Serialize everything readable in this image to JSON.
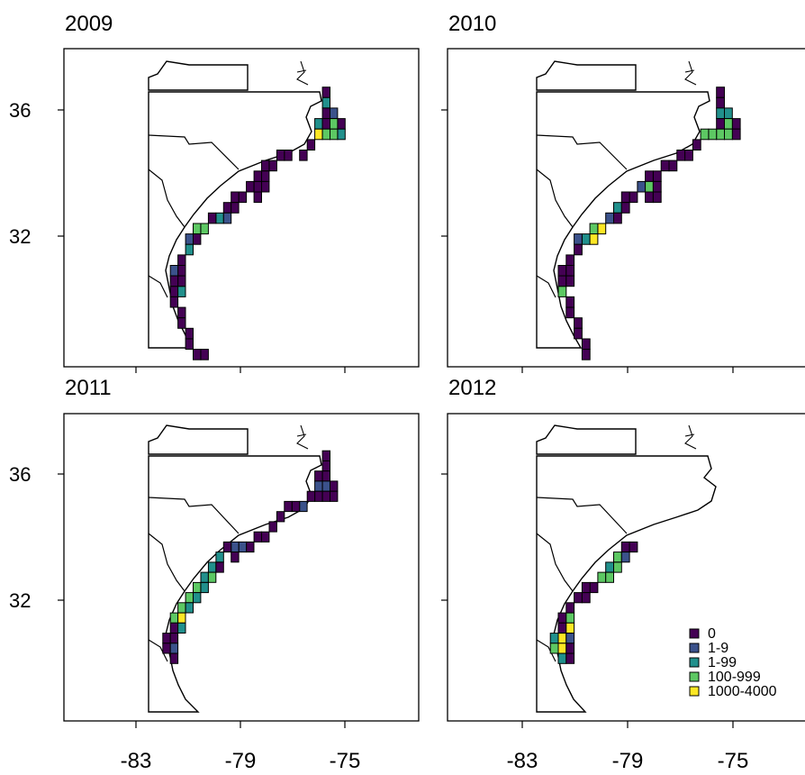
{
  "figure": {
    "panel_titles": [
      "2009",
      "2010",
      "2011",
      "2012"
    ],
    "y_tick_labels": [
      "36",
      "32"
    ],
    "x_tick_labels": [
      "-83",
      "-79",
      "-75"
    ],
    "legend": [
      {
        "label": "0",
        "color": "#440154"
      },
      {
        "label": "1-9",
        "color": "#3b528b"
      },
      {
        "label": "1-99",
        "color": "#21908c"
      },
      {
        "label": "100-999",
        "color": "#5dc863"
      },
      {
        "label": "1000-4000",
        "color": "#fde725"
      }
    ]
  },
  "chart_data": [
    {
      "type": "heatmap",
      "title": "2009",
      "lon_range": [
        -85.5,
        -71.5
      ],
      "lat_range": [
        28.7,
        37.8
      ],
      "grid_cell_deg": 0.3,
      "cells": [
        [
          -75.3,
          36.4,
          0
        ],
        [
          -75.3,
          36.1,
          2
        ],
        [
          -75.3,
          35.8,
          0
        ],
        [
          -75.0,
          35.8,
          1
        ],
        [
          -74.7,
          35.5,
          0
        ],
        [
          -75.0,
          35.5,
          3
        ],
        [
          -75.3,
          35.5,
          0
        ],
        [
          -75.6,
          35.5,
          2
        ],
        [
          -74.7,
          35.2,
          2
        ],
        [
          -75.0,
          35.2,
          3
        ],
        [
          -75.3,
          35.2,
          3
        ],
        [
          -75.6,
          35.2,
          4
        ],
        [
          -75.9,
          34.9,
          0
        ],
        [
          -76.2,
          34.6,
          0
        ],
        [
          -76.8,
          34.6,
          0
        ],
        [
          -77.1,
          34.6,
          0
        ],
        [
          -77.4,
          34.3,
          0
        ],
        [
          -77.7,
          34.3,
          0
        ],
        [
          -78.0,
          34.0,
          0
        ],
        [
          -77.7,
          34.0,
          0
        ],
        [
          -78.3,
          33.7,
          0
        ],
        [
          -78.0,
          33.7,
          0
        ],
        [
          -77.7,
          33.7,
          0
        ],
        [
          -78.6,
          33.4,
          0
        ],
        [
          -78.9,
          33.4,
          0
        ],
        [
          -78.0,
          33.4,
          0
        ],
        [
          -79.2,
          33.1,
          0
        ],
        [
          -78.9,
          33.1,
          0
        ],
        [
          -79.5,
          32.8,
          2
        ],
        [
          -79.2,
          32.8,
          1
        ],
        [
          -79.8,
          32.8,
          0
        ],
        [
          -80.1,
          32.5,
          3
        ],
        [
          -80.4,
          32.5,
          3
        ],
        [
          -80.7,
          32.2,
          1
        ],
        [
          -80.4,
          32.2,
          0
        ],
        [
          -80.7,
          31.9,
          2
        ],
        [
          -81.0,
          31.6,
          0
        ],
        [
          -81.0,
          31.3,
          0
        ],
        [
          -81.3,
          31.3,
          1
        ],
        [
          -81.0,
          31.0,
          0
        ],
        [
          -81.3,
          31.0,
          0
        ],
        [
          -81.3,
          30.7,
          0
        ],
        [
          -81.0,
          30.7,
          2
        ],
        [
          -81.3,
          30.4,
          0
        ],
        [
          -81.0,
          30.1,
          0
        ],
        [
          -81.0,
          29.8,
          0
        ],
        [
          -80.7,
          29.5,
          0
        ],
        [
          -80.7,
          29.2,
          0
        ],
        [
          -80.4,
          28.9,
          0
        ],
        [
          -80.1,
          28.9,
          0
        ]
      ]
    },
    {
      "type": "heatmap",
      "title": "2010",
      "lon_range": [
        -85.5,
        -71.5
      ],
      "lat_range": [
        28.7,
        37.8
      ],
      "grid_cell_deg": 0.3,
      "cells": [
        [
          -75.3,
          36.4,
          0
        ],
        [
          -75.3,
          36.1,
          0
        ],
        [
          -75.3,
          35.8,
          2
        ],
        [
          -75.0,
          35.8,
          2
        ],
        [
          -74.7,
          35.5,
          0
        ],
        [
          -75.0,
          35.5,
          3
        ],
        [
          -75.3,
          35.5,
          0
        ],
        [
          -74.7,
          35.2,
          0
        ],
        [
          -75.0,
          35.2,
          3
        ],
        [
          -75.3,
          35.2,
          3
        ],
        [
          -75.6,
          35.2,
          3
        ],
        [
          -75.9,
          35.2,
          3
        ],
        [
          -76.2,
          34.9,
          0
        ],
        [
          -76.5,
          34.6,
          0
        ],
        [
          -76.8,
          34.6,
          0
        ],
        [
          -77.1,
          34.3,
          0
        ],
        [
          -77.4,
          34.3,
          0
        ],
        [
          -77.7,
          34.0,
          0
        ],
        [
          -78.0,
          34.0,
          0
        ],
        [
          -78.3,
          33.7,
          1
        ],
        [
          -78.0,
          33.7,
          3
        ],
        [
          -77.7,
          33.7,
          0
        ],
        [
          -78.6,
          33.4,
          0
        ],
        [
          -78.0,
          33.4,
          0
        ],
        [
          -77.7,
          33.4,
          0
        ],
        [
          -78.9,
          33.4,
          0
        ],
        [
          -79.2,
          33.1,
          2
        ],
        [
          -78.9,
          33.1,
          0
        ],
        [
          -79.5,
          32.8,
          1
        ],
        [
          -79.2,
          32.8,
          0
        ],
        [
          -79.8,
          32.5,
          4
        ],
        [
          -80.1,
          32.5,
          3
        ],
        [
          -80.4,
          32.2,
          2
        ],
        [
          -80.1,
          32.2,
          4
        ],
        [
          -80.7,
          32.2,
          1
        ],
        [
          -80.7,
          31.9,
          0
        ],
        [
          -81.0,
          31.6,
          0
        ],
        [
          -81.3,
          31.3,
          0
        ],
        [
          -81.0,
          31.3,
          0
        ],
        [
          -81.3,
          31.0,
          0
        ],
        [
          -81.0,
          31.0,
          0
        ],
        [
          -81.3,
          30.7,
          3
        ],
        [
          -81.0,
          30.4,
          0
        ],
        [
          -81.0,
          30.1,
          0
        ],
        [
          -80.7,
          29.8,
          0
        ],
        [
          -80.7,
          29.5,
          0
        ],
        [
          -80.4,
          29.2,
          0
        ],
        [
          -80.4,
          28.9,
          0
        ]
      ]
    },
    {
      "type": "heatmap",
      "title": "2011",
      "lon_range": [
        -85.5,
        -71.5
      ],
      "lat_range": [
        28.7,
        37.8
      ],
      "grid_cell_deg": 0.3,
      "cells": [
        [
          -75.3,
          36.4,
          0
        ],
        [
          -75.3,
          36.1,
          0
        ],
        [
          -75.3,
          35.8,
          0
        ],
        [
          -75.6,
          35.8,
          0
        ],
        [
          -75.0,
          35.5,
          0
        ],
        [
          -75.3,
          35.5,
          1
        ],
        [
          -75.6,
          35.5,
          1
        ],
        [
          -75.0,
          35.2,
          0
        ],
        [
          -75.3,
          35.2,
          0
        ],
        [
          -75.6,
          35.2,
          0
        ],
        [
          -75.9,
          35.2,
          0
        ],
        [
          -76.2,
          34.9,
          1
        ],
        [
          -76.5,
          34.9,
          0
        ],
        [
          -76.8,
          34.9,
          0
        ],
        [
          -77.1,
          34.6,
          0
        ],
        [
          -77.4,
          34.3,
          0
        ],
        [
          -77.7,
          34.0,
          0
        ],
        [
          -78.0,
          34.0,
          0
        ],
        [
          -78.3,
          33.7,
          0
        ],
        [
          -78.6,
          33.7,
          1
        ],
        [
          -78.9,
          33.7,
          1
        ],
        [
          -79.2,
          33.7,
          0
        ],
        [
          -79.5,
          33.4,
          2
        ],
        [
          -78.9,
          33.4,
          0
        ],
        [
          -79.8,
          33.1,
          2
        ],
        [
          -79.5,
          33.1,
          0
        ],
        [
          -80.1,
          32.8,
          2
        ],
        [
          -79.8,
          32.8,
          3
        ],
        [
          -80.4,
          32.5,
          3
        ],
        [
          -80.1,
          32.5,
          2
        ],
        [
          -80.7,
          32.2,
          3
        ],
        [
          -80.4,
          32.2,
          2
        ],
        [
          -81.0,
          31.9,
          3
        ],
        [
          -80.7,
          31.9,
          2
        ],
        [
          -81.3,
          31.6,
          3
        ],
        [
          -81.0,
          31.6,
          4
        ],
        [
          -81.3,
          31.3,
          0
        ],
        [
          -81.0,
          31.3,
          2
        ],
        [
          -81.6,
          31.0,
          0
        ],
        [
          -81.3,
          31.0,
          0
        ],
        [
          -81.6,
          30.7,
          0
        ],
        [
          -81.3,
          30.7,
          1
        ],
        [
          -81.3,
          30.4,
          0
        ]
      ]
    },
    {
      "type": "heatmap",
      "title": "2012",
      "lon_range": [
        -85.5,
        -71.5
      ],
      "lat_range": [
        28.7,
        37.8
      ],
      "grid_cell_deg": 0.3,
      "cells": [
        [
          -78.9,
          33.7,
          0
        ],
        [
          -78.6,
          33.7,
          0
        ],
        [
          -79.2,
          33.4,
          3
        ],
        [
          -78.9,
          33.4,
          1
        ],
        [
          -79.5,
          33.1,
          2
        ],
        [
          -79.2,
          33.1,
          3
        ],
        [
          -79.8,
          32.8,
          3
        ],
        [
          -79.5,
          32.8,
          3
        ],
        [
          -80.1,
          32.5,
          0
        ],
        [
          -80.4,
          32.5,
          0
        ],
        [
          -80.7,
          32.2,
          0
        ],
        [
          -80.4,
          32.2,
          0
        ],
        [
          -81.0,
          31.9,
          0
        ],
        [
          -81.3,
          31.6,
          0
        ],
        [
          -81.0,
          31.6,
          3
        ],
        [
          -81.3,
          31.3,
          0
        ],
        [
          -81.0,
          31.3,
          4
        ],
        [
          -81.6,
          31.0,
          2
        ],
        [
          -81.3,
          31.0,
          4
        ],
        [
          -81.0,
          31.0,
          1
        ],
        [
          -81.6,
          30.7,
          3
        ],
        [
          -81.3,
          30.7,
          4
        ],
        [
          -81.0,
          30.7,
          0
        ],
        [
          -81.3,
          30.4,
          2
        ],
        [
          -81.0,
          30.4,
          0
        ]
      ]
    }
  ]
}
